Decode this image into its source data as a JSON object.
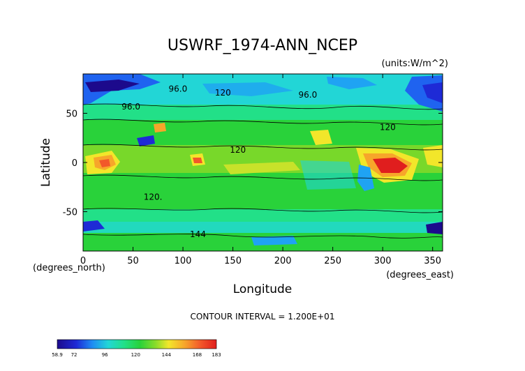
{
  "chart_data": {
    "type": "heatmap",
    "title": "USWRF_1974-ANN_NCEP",
    "units_label": "(units:W/m^2)",
    "xlabel": "Longitude",
    "ylabel": "Latitude",
    "x_unit_label": "(degrees_east)",
    "y_unit_label": "(degrees_north)",
    "x_ticks": [
      0,
      50,
      100,
      150,
      200,
      250,
      300,
      350
    ],
    "y_ticks": [
      50,
      0,
      -50
    ],
    "xlim": [
      0,
      360
    ],
    "ylim": [
      -90,
      90
    ],
    "footer": "CONTOUR INTERVAL = 1.200E+01",
    "colorbar_labels": [
      "58.9",
      "72",
      "96",
      "120",
      "144",
      "168",
      "183"
    ],
    "colorbar_range": [
      58.9,
      183
    ],
    "contour_labels": [
      "96.0",
      "96.0",
      "96.0",
      "120",
      "120",
      "120",
      "120.",
      "144"
    ],
    "palette": [
      "#1c0a8c",
      "#1e2ad6",
      "#1f63f0",
      "#1fa3f3",
      "#22d6d6",
      "#22e088",
      "#29d23a",
      "#78d82a",
      "#c8e22a",
      "#f2e62a",
      "#f7a62a",
      "#f2582a",
      "#e01e1e"
    ]
  }
}
